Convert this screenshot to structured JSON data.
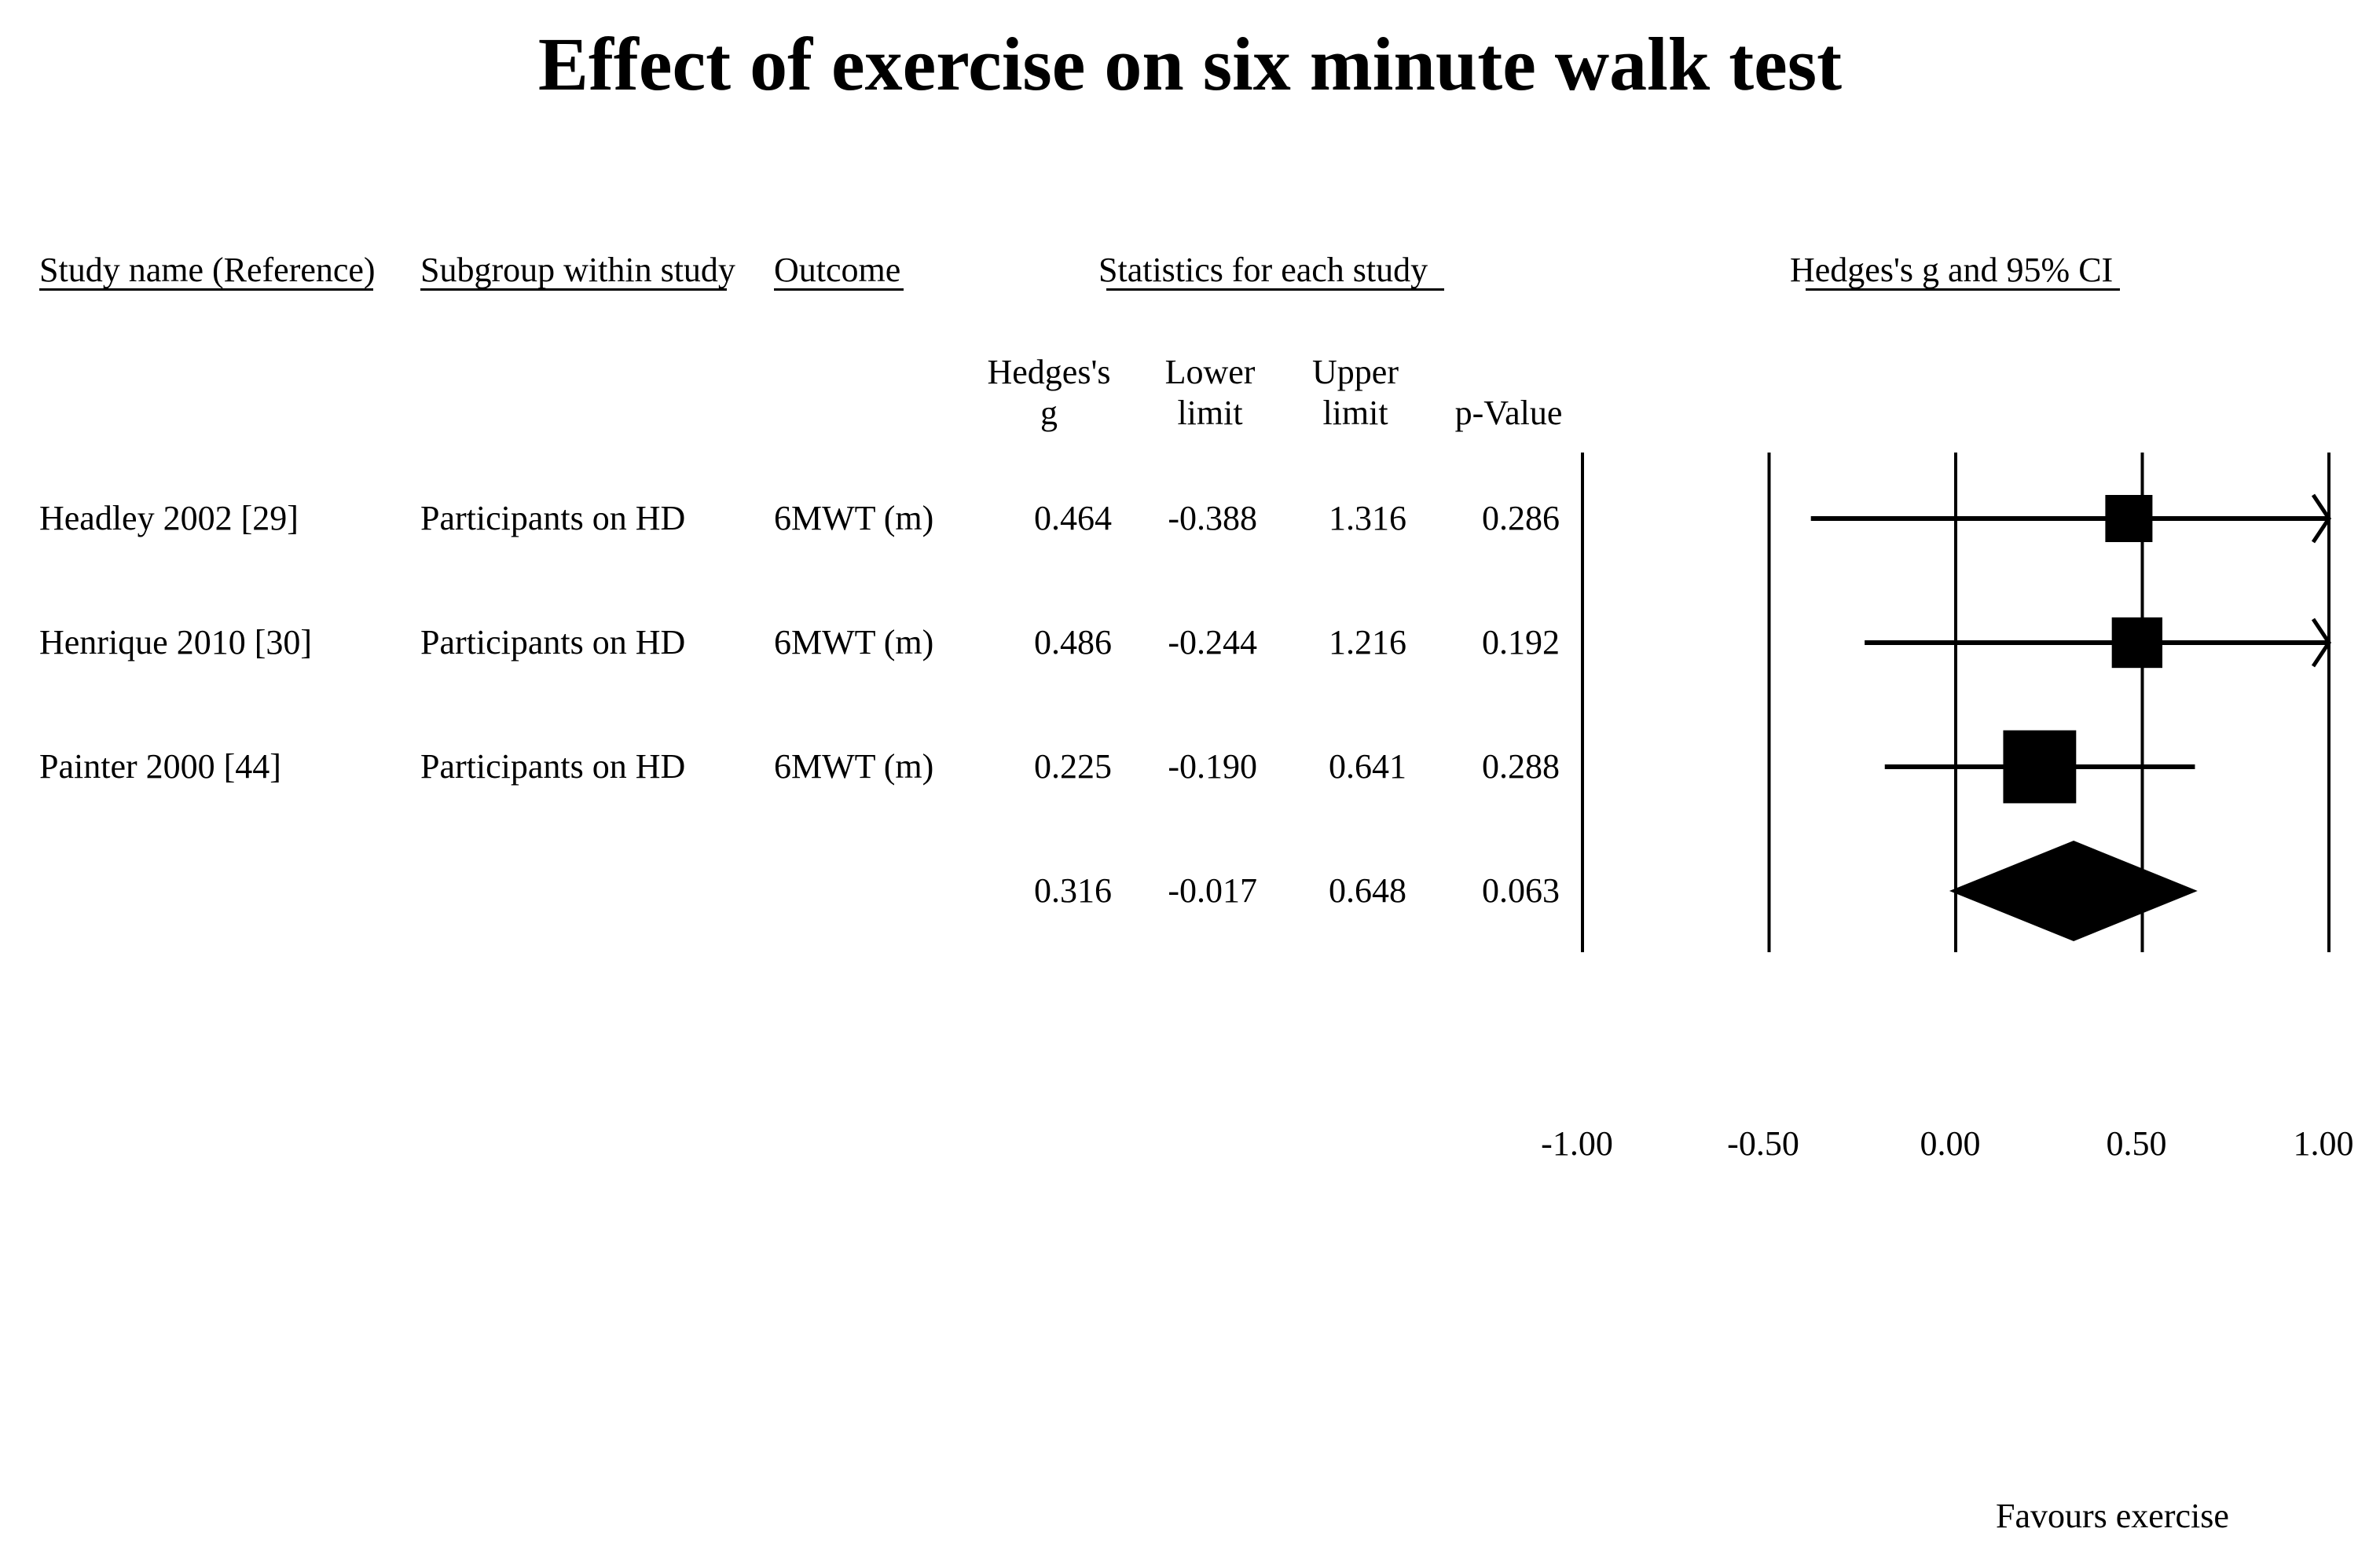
{
  "chart_data": {
    "type": "forest",
    "title": "Effect of exercise on six minute walk test",
    "column_headers": {
      "study": "Study name (Reference)",
      "subgroup": "Subgroup within study",
      "outcome": "Outcome",
      "stats_group": "Statistics for each study",
      "plot_group": "Hedges's g and 95% CI",
      "g_line1": "Hedges's",
      "g_line2": "g",
      "lower_line1": "Lower",
      "lower_line2": "limit",
      "upper_line1": "Upper",
      "upper_line2": "limit",
      "p": "p-Value"
    },
    "studies": [
      {
        "name": "Headley 2002 [29]",
        "subgroup": "Participants on HD",
        "outcome": "6MWT (m)",
        "g": "0.464",
        "lower": "-0.388",
        "upper": "1.316",
        "p": "0.286",
        "weight": 1.0
      },
      {
        "name": "Henrique  2010 [30]",
        "subgroup": "Participants on HD",
        "outcome": "6MWT (m)",
        "g": "0.486",
        "lower": "-0.244",
        "upper": "1.216",
        "p": "0.192",
        "weight": 1.15
      },
      {
        "name": "Painter 2000 [44]",
        "subgroup": "Participants on HD",
        "outcome": "6MWT (m)",
        "g": "0.225",
        "lower": "-0.190",
        "upper": "0.641",
        "p": "0.288",
        "weight": 2.0
      }
    ],
    "summary": {
      "g": "0.316",
      "lower": "-0.017",
      "upper": "0.648",
      "p": "0.063"
    },
    "x_ticks": [
      "-1.00",
      "-0.50",
      "0.00",
      "0.50",
      "1.00"
    ],
    "xlim": [
      -1.0,
      1.0
    ],
    "annotation_right": "Favours exercise"
  }
}
